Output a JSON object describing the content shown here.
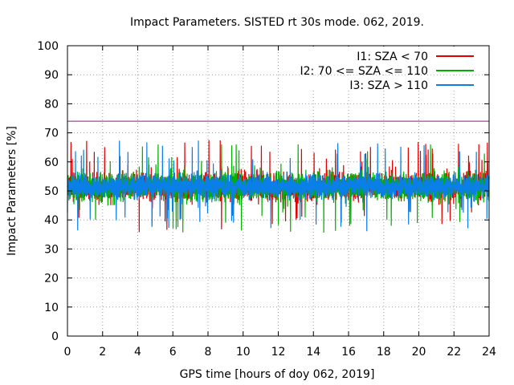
{
  "chart_data": {
    "type": "line",
    "title": "Impact Parameters. SISTED rt 30s mode. 062, 2019.",
    "xlabel": "GPS time [hours of doy 062, 2019]",
    "ylabel": "Impact Parameters [%]",
    "xlim": [
      0,
      24
    ],
    "ylim": [
      0,
      100
    ],
    "xticks": [
      0,
      2,
      4,
      6,
      8,
      10,
      12,
      14,
      16,
      18,
      20,
      22,
      24
    ],
    "yticks": [
      0,
      10,
      20,
      30,
      40,
      50,
      60,
      70,
      80,
      90,
      100
    ],
    "grid": true,
    "legend_position": "top-right",
    "threshold": {
      "value": 74,
      "color": "#8b1a8b"
    },
    "series": [
      {
        "name": "I1: SZA < 70",
        "color": "#e00000",
        "mean": 51.5,
        "min": 35,
        "max": 70
      },
      {
        "name": "I2: 70 <= SZA <= 110",
        "color": "#00b000",
        "mean": 51.5,
        "min": 31.5,
        "max": 66
      },
      {
        "name": "I3: SZA > 110",
        "color": "#0a7fe8",
        "mean": 51.5,
        "min": 36,
        "max": 69.5
      }
    ]
  }
}
